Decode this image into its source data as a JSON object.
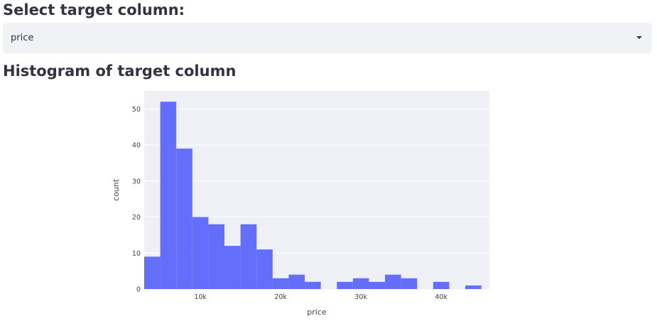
{
  "select_section": {
    "heading": "Select target column:",
    "selected_value": "price",
    "icon": "caret-down-icon"
  },
  "histogram_section": {
    "heading": "Histogram of target column"
  },
  "colors": {
    "bar": "#636efa",
    "plot_background": "#eff0f6",
    "gridline": "#ffffff"
  },
  "chart_data": {
    "type": "bar",
    "title": "",
    "xlabel": "price",
    "ylabel": "count",
    "xlim": [
      3000,
      46000
    ],
    "ylim": [
      0,
      55
    ],
    "bin_width": 2000,
    "bins": [
      {
        "start": 3000,
        "end": 5000,
        "count": 9
      },
      {
        "start": 5000,
        "end": 7000,
        "count": 52
      },
      {
        "start": 7000,
        "end": 9000,
        "count": 39
      },
      {
        "start": 9000,
        "end": 11000,
        "count": 20
      },
      {
        "start": 11000,
        "end": 13000,
        "count": 18
      },
      {
        "start": 13000,
        "end": 15000,
        "count": 12
      },
      {
        "start": 15000,
        "end": 17000,
        "count": 18
      },
      {
        "start": 17000,
        "end": 19000,
        "count": 11
      },
      {
        "start": 19000,
        "end": 21000,
        "count": 3
      },
      {
        "start": 21000,
        "end": 23000,
        "count": 4
      },
      {
        "start": 23000,
        "end": 25000,
        "count": 2
      },
      {
        "start": 27000,
        "end": 29000,
        "count": 2
      },
      {
        "start": 29000,
        "end": 31000,
        "count": 3
      },
      {
        "start": 31000,
        "end": 33000,
        "count": 2
      },
      {
        "start": 33000,
        "end": 35000,
        "count": 4
      },
      {
        "start": 35000,
        "end": 37000,
        "count": 3
      },
      {
        "start": 39000,
        "end": 41000,
        "count": 2
      },
      {
        "start": 43000,
        "end": 45000,
        "count": 1
      }
    ],
    "x_ticks": [
      {
        "value": 10000,
        "label": "10k"
      },
      {
        "value": 20000,
        "label": "20k"
      },
      {
        "value": 30000,
        "label": "30k"
      },
      {
        "value": 40000,
        "label": "40k"
      }
    ],
    "y_ticks": [
      {
        "value": 0,
        "label": "0"
      },
      {
        "value": 10,
        "label": "10"
      },
      {
        "value": 20,
        "label": "20"
      },
      {
        "value": 30,
        "label": "30"
      },
      {
        "value": 40,
        "label": "40"
      },
      {
        "value": 50,
        "label": "50"
      }
    ],
    "grid": true,
    "legend": "none"
  }
}
